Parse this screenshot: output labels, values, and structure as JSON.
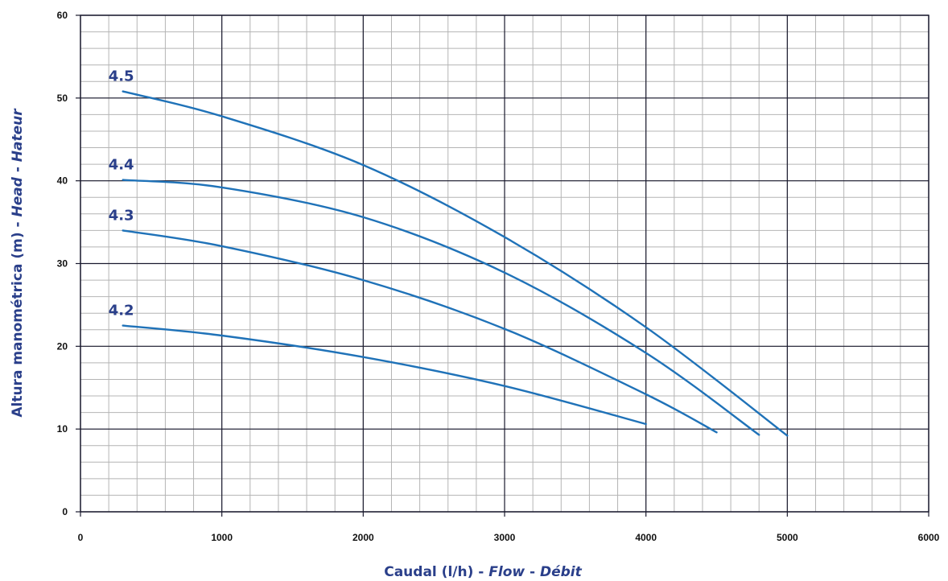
{
  "chart_data": {
    "type": "line",
    "title": "",
    "xlabel": {
      "main": "Caudal (l/h) - ",
      "flow": "Flow",
      "sep": " - ",
      "debit": "Débit"
    },
    "ylabel": {
      "main": "Altura manométrica (m) - ",
      "head": "Head",
      "sep": " - ",
      "hateur": "Hateur"
    },
    "xlim": [
      0,
      6000
    ],
    "ylim": [
      0,
      60
    ],
    "xticks": [
      "0",
      "1000",
      "2000",
      "3000",
      "4000",
      "5000",
      "6000"
    ],
    "yticks": [
      "0",
      "10",
      "20",
      "30",
      "40",
      "50",
      "60"
    ],
    "grid": true,
    "legend": "none",
    "colors": {
      "series": "#1f72b8",
      "labels": "#2a3f8a",
      "grid_minor": "#b4b4b4",
      "grid_major": "#1a1a2e"
    },
    "series": [
      {
        "name": "4.5",
        "x": [
          300,
          1000,
          2000,
          3000,
          4000,
          5000
        ],
        "y": [
          50.8,
          47.8,
          41.9,
          33.2,
          22.3,
          9.2
        ]
      },
      {
        "name": "4.4",
        "x": [
          300,
          1000,
          2000,
          3000,
          4000,
          4800
        ],
        "y": [
          40.1,
          39.2,
          35.6,
          28.9,
          19.2,
          9.3
        ]
      },
      {
        "name": "4.3",
        "x": [
          300,
          1000,
          2000,
          3000,
          4000,
          4500
        ],
        "y": [
          34.0,
          32.1,
          28.0,
          22.1,
          14.2,
          9.6
        ]
      },
      {
        "name": "4.2",
        "x": [
          300,
          1000,
          2000,
          3000,
          4000
        ],
        "y": [
          22.5,
          21.3,
          18.7,
          15.2,
          10.6
        ]
      }
    ]
  }
}
